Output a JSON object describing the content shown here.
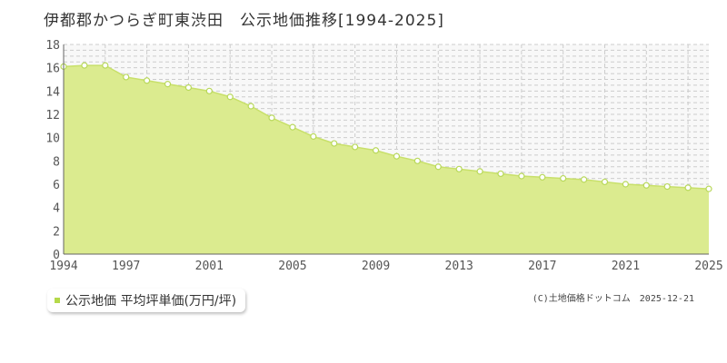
{
  "title": "伊都郡かつらぎ町東渋田　公示地価推移[1994-2025]",
  "legend_label": "公示地価 平均坪単価(万円/坪)",
  "credit": "(C)土地価格ドットコム　2025-12-21",
  "colors": {
    "fill": "#dbeb8f",
    "line": "#c8e06a",
    "marker": "#b8d85a",
    "grid": "#cccccc",
    "plot_bg": "#f8f8f8"
  },
  "chart_data": {
    "type": "area",
    "x": [
      1994,
      1995,
      1996,
      1997,
      1998,
      1999,
      2000,
      2001,
      2002,
      2003,
      2004,
      2005,
      2006,
      2007,
      2008,
      2009,
      2010,
      2011,
      2012,
      2013,
      2014,
      2015,
      2016,
      2017,
      2018,
      2019,
      2020,
      2021,
      2022,
      2023,
      2024,
      2025
    ],
    "series": [
      {
        "values": [
          16.1,
          16.2,
          16.2,
          15.2,
          14.9,
          14.6,
          14.3,
          14.0,
          13.5,
          12.7,
          11.7,
          10.9,
          10.1,
          9.5,
          9.2,
          8.9,
          8.4,
          8.0,
          7.5,
          7.3,
          7.1,
          6.9,
          6.7,
          6.6,
          6.5,
          6.4,
          6.2,
          6.0,
          5.9,
          5.8,
          5.7,
          5.6
        ]
      }
    ],
    "x_ticks": [
      1994,
      1997,
      2001,
      2005,
      2009,
      2013,
      2017,
      2021,
      2025
    ],
    "y_ticks": [
      0,
      2,
      4,
      6,
      8,
      10,
      12,
      14,
      16,
      18
    ],
    "xlim": [
      1994,
      2025
    ],
    "ylim": [
      0,
      18
    ],
    "grid": true,
    "xlabel": "",
    "ylabel": ""
  }
}
